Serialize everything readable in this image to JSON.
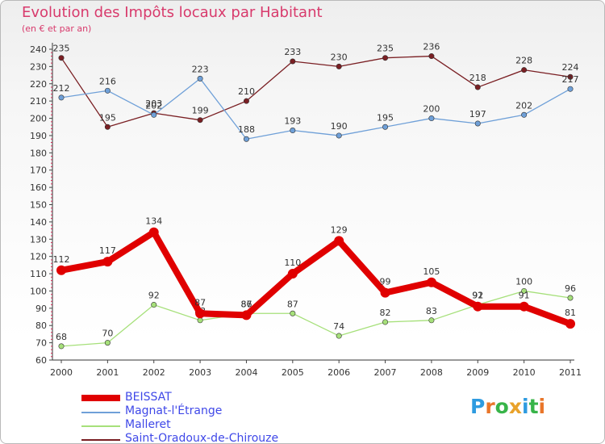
{
  "title": "Evolution des Impôts locaux par Habitant",
  "subtitle": "(en € et par an)",
  "logo": {
    "text": "Proxiti",
    "letters": [
      "P",
      "r",
      "o",
      "x",
      "i",
      "t",
      "i"
    ],
    "colors": [
      "#2e9be0",
      "#e9762a",
      "#38b449",
      "#e9a22a",
      "#2e9be0",
      "#38b449",
      "#e9762a"
    ]
  },
  "chart_data": {
    "type": "line",
    "title": "Evolution des Impôts locaux par Habitant",
    "ylabel": "(en € et par an)",
    "xlabel": "",
    "ylim": [
      60,
      240
    ],
    "yticks": [
      60,
      70,
      80,
      90,
      100,
      110,
      120,
      130,
      140,
      150,
      160,
      170,
      180,
      190,
      200,
      210,
      220,
      230,
      240
    ],
    "categories": [
      "2000",
      "2001",
      "2002",
      "2003",
      "2004",
      "2005",
      "2006",
      "2007",
      "2008",
      "2009",
      "2010",
      "2011"
    ],
    "series": [
      {
        "name": "Saint-Oradoux-de-Chirouze",
        "color": "#7a1f23",
        "values": [
          235,
          195,
          203,
          199,
          210,
          233,
          230,
          235,
          236,
          218,
          228,
          224
        ]
      },
      {
        "name": "Magnat-l'Étrange",
        "color": "#6fa0d8",
        "values": [
          212,
          216,
          202,
          223,
          188,
          193,
          190,
          195,
          200,
          197,
          202,
          217
        ]
      },
      {
        "name": "Malleret",
        "color": "#a6e07a",
        "values": [
          68,
          70,
          92,
          83,
          87,
          87,
          74,
          82,
          83,
          92,
          100,
          96
        ]
      },
      {
        "name": "BEISSAT",
        "color": "#e00000",
        "values": [
          112,
          117,
          134,
          87,
          86,
          110,
          129,
          99,
          105,
          91,
          91,
          81
        ]
      }
    ],
    "legend": [
      "BEISSAT",
      "Magnat-l'Étrange",
      "Malleret",
      "Saint-Oradoux-de-Chirouze"
    ],
    "grid": false
  }
}
